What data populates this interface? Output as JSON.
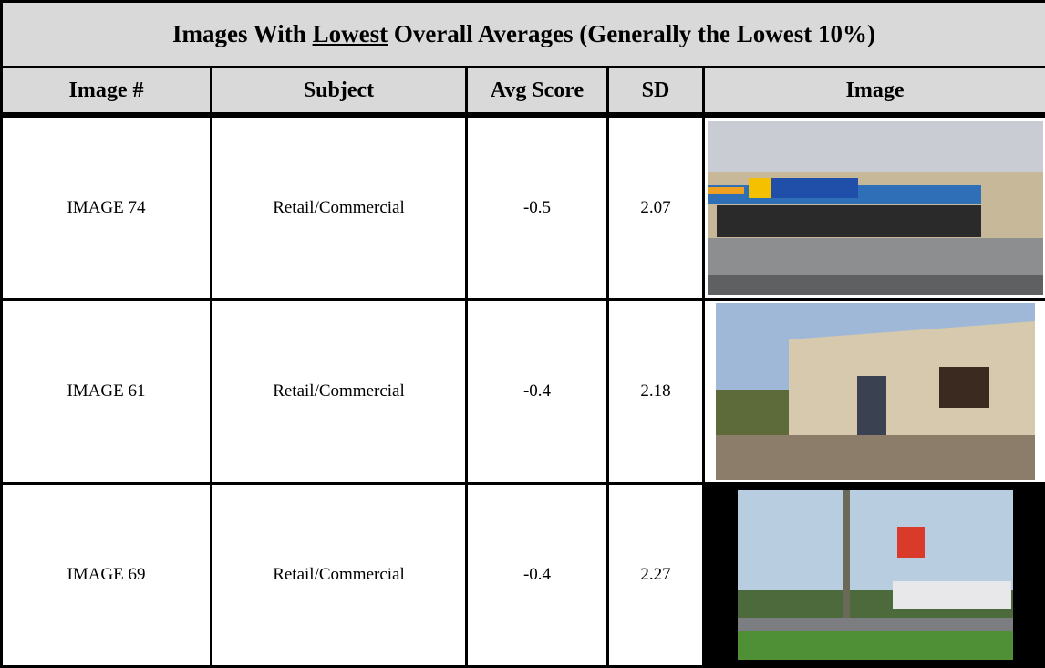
{
  "header": {
    "title": [
      "Images With ",
      "Lowest",
      " Overall Averages (Generally the Lowest 10%)"
    ]
  },
  "table": {
    "columns": [
      "Image #",
      "Subject",
      "Avg Score",
      "SD",
      "Image"
    ],
    "rows": [
      [
        "IMAGE 74",
        "Retail/Commercial",
        "-0.5",
        "2.07"
      ],
      [
        "IMAGE 61",
        "Retail/Commercial",
        "-0.4",
        "2.18"
      ],
      [
        "IMAGE 69",
        "Retail/Commercial",
        "-0.4",
        "2.27"
      ]
    ]
  }
}
